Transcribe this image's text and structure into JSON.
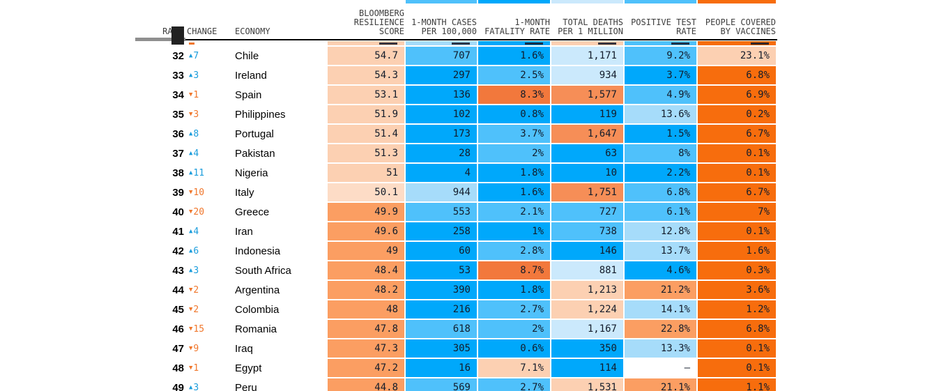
{
  "palette": {
    "b1": "#00a8fb",
    "b2": "#4fc1fb",
    "b3": "#a6dcfa",
    "b4": "#cbe9fc",
    "o1": "#f76d0d",
    "o2": "#f2783c",
    "o3": "#f68e57",
    "o4": "#fb9e62",
    "o5": "#fcd0b2",
    "o6": "#fddcc6",
    "w": "#ffffff"
  },
  "icons": {
    "up_arrow": "▲",
    "down_arrow": "▼"
  },
  "change_colors": {
    "up": "#1b9ddc",
    "down": "#f0772c"
  },
  "header": {
    "rank_label": "RANK",
    "change_label": "CHANGE",
    "economy_label": "ECONOMY",
    "value_columns": [
      {
        "lines": [
          "BLOOMBERG",
          "RESILIENCE",
          "SCORE"
        ]
      },
      {
        "lines": [
          "1-MONTH CASES",
          "PER 100,000"
        ]
      },
      {
        "lines": [
          "1-MONTH",
          "FATALITY RATE"
        ]
      },
      {
        "lines": [
          "TOTAL DEATHS",
          "PER 1 MILLION"
        ]
      },
      {
        "lines": [
          "POSITIVE TEST",
          "RATE"
        ]
      },
      {
        "lines": [
          "PEOPLE COVERED",
          "BY VACCINES"
        ]
      }
    ]
  },
  "top_strip": {
    "colors": [
      "b2",
      "b1",
      "b4",
      "b2",
      "o1"
    ]
  },
  "partial_row": {
    "cell_colors": [
      "o5",
      "b3",
      "b1",
      "o5",
      "b2",
      "o1"
    ],
    "change_dir": "down"
  },
  "chart_data": {
    "type": "table",
    "columns": [
      "RANK",
      "CHANGE",
      "ECONOMY",
      "BLOOMBERG RESILIENCE SCORE",
      "1-MONTH CASES PER 100,000",
      "1-MONTH FATALITY RATE",
      "TOTAL DEATHS PER 1 MILLION",
      "POSITIVE TEST RATE",
      "PEOPLE COVERED BY VACCINES"
    ],
    "rows": [
      {
        "rank": "32",
        "dir": "up",
        "change": "7",
        "economy": "Chile",
        "values": [
          "54.7",
          "707",
          "1.6%",
          "1,171",
          "9.2%",
          "23.1%"
        ],
        "colors": [
          "o5",
          "b2",
          "b1",
          "b4",
          "b2",
          "o5"
        ]
      },
      {
        "rank": "33",
        "dir": "up",
        "change": "3",
        "economy": "Ireland",
        "values": [
          "54.3",
          "297",
          "2.5%",
          "934",
          "3.7%",
          "6.8%"
        ],
        "colors": [
          "o5",
          "b1",
          "b2",
          "b4",
          "b1",
          "o1"
        ]
      },
      {
        "rank": "34",
        "dir": "down",
        "change": "1",
        "economy": "Spain",
        "values": [
          "53.1",
          "136",
          "8.3%",
          "1,577",
          "4.9%",
          "6.9%"
        ],
        "colors": [
          "o5",
          "b1",
          "o2",
          "o3",
          "b2",
          "o1"
        ]
      },
      {
        "rank": "35",
        "dir": "down",
        "change": "3",
        "economy": "Philippines",
        "values": [
          "51.9",
          "102",
          "0.8%",
          "119",
          "13.6%",
          "0.2%"
        ],
        "colors": [
          "o5",
          "b1",
          "b1",
          "b1",
          "b3",
          "o1"
        ]
      },
      {
        "rank": "36",
        "dir": "up",
        "change": "8",
        "economy": "Portugal",
        "values": [
          "51.4",
          "173",
          "3.7%",
          "1,647",
          "1.5%",
          "6.7%"
        ],
        "colors": [
          "o5",
          "b1",
          "b2",
          "o3",
          "b1",
          "o1"
        ]
      },
      {
        "rank": "37",
        "dir": "up",
        "change": "4",
        "economy": "Pakistan",
        "values": [
          "51.3",
          "28",
          "2%",
          "63",
          "8%",
          "0.1%"
        ],
        "colors": [
          "o5",
          "b1",
          "b2",
          "b1",
          "b2",
          "o1"
        ]
      },
      {
        "rank": "38",
        "dir": "up",
        "change": "11",
        "economy": "Nigeria",
        "values": [
          "51",
          "4",
          "1.8%",
          "10",
          "2.2%",
          "0.1%"
        ],
        "colors": [
          "o5",
          "b1",
          "b1",
          "b1",
          "b1",
          "o1"
        ]
      },
      {
        "rank": "39",
        "dir": "down",
        "change": "10",
        "economy": "Italy",
        "values": [
          "50.1",
          "944",
          "1.6%",
          "1,751",
          "6.8%",
          "6.7%"
        ],
        "colors": [
          "o6",
          "b3",
          "b1",
          "o3",
          "b2",
          "o1"
        ]
      },
      {
        "rank": "40",
        "dir": "down",
        "change": "20",
        "economy": "Greece",
        "values": [
          "49.9",
          "553",
          "2.1%",
          "727",
          "6.1%",
          "7%"
        ],
        "colors": [
          "o4",
          "b2",
          "b2",
          "b2",
          "b2",
          "o1"
        ]
      },
      {
        "rank": "41",
        "dir": "up",
        "change": "4",
        "economy": "Iran",
        "values": [
          "49.6",
          "258",
          "1%",
          "738",
          "12.8%",
          "0.1%"
        ],
        "colors": [
          "o4",
          "b1",
          "b1",
          "b2",
          "b3",
          "o1"
        ]
      },
      {
        "rank": "42",
        "dir": "up",
        "change": "6",
        "economy": "Indonesia",
        "values": [
          "49",
          "60",
          "2.8%",
          "146",
          "13.7%",
          "1.6%"
        ],
        "colors": [
          "o4",
          "b1",
          "b2",
          "b1",
          "b3",
          "o1"
        ]
      },
      {
        "rank": "43",
        "dir": "up",
        "change": "3",
        "economy": "South Africa",
        "values": [
          "48.4",
          "53",
          "8.7%",
          "881",
          "4.6%",
          "0.3%"
        ],
        "colors": [
          "o4",
          "b1",
          "o2",
          "b4",
          "b1",
          "o1"
        ]
      },
      {
        "rank": "44",
        "dir": "down",
        "change": "2",
        "economy": "Argentina",
        "values": [
          "48.2",
          "390",
          "1.8%",
          "1,213",
          "21.2%",
          "3.6%"
        ],
        "colors": [
          "o4",
          "b1",
          "b1",
          "o5",
          "o4",
          "o1"
        ]
      },
      {
        "rank": "45",
        "dir": "down",
        "change": "2",
        "economy": "Colombia",
        "values": [
          "48",
          "216",
          "2.7%",
          "1,224",
          "14.1%",
          "1.2%"
        ],
        "colors": [
          "o4",
          "b1",
          "b2",
          "o5",
          "b3",
          "o1"
        ]
      },
      {
        "rank": "46",
        "dir": "down",
        "change": "15",
        "economy": "Romania",
        "values": [
          "47.8",
          "618",
          "2%",
          "1,167",
          "22.8%",
          "6.8%"
        ],
        "colors": [
          "o4",
          "b2",
          "b2",
          "b4",
          "o4",
          "o1"
        ]
      },
      {
        "rank": "47",
        "dir": "down",
        "change": "9",
        "economy": "Iraq",
        "values": [
          "47.3",
          "305",
          "0.6%",
          "350",
          "13.3%",
          "0.1%"
        ],
        "colors": [
          "o4",
          "b1",
          "b1",
          "b1",
          "b3",
          "o1"
        ]
      },
      {
        "rank": "48",
        "dir": "down",
        "change": "1",
        "economy": "Egypt",
        "values": [
          "47.2",
          "16",
          "7.1%",
          "114",
          "–",
          "0.1%"
        ],
        "colors": [
          "o4",
          "b1",
          "o5",
          "b1",
          "w",
          "o1"
        ]
      },
      {
        "rank": "49",
        "dir": "up",
        "change": "3",
        "economy": "Peru",
        "values": [
          "44.8",
          "569",
          "2.7%",
          "1,531",
          "21.1%",
          "1.1%"
        ],
        "colors": [
          "o4",
          "b2",
          "b2",
          "o5",
          "o4",
          "o1"
        ]
      }
    ]
  }
}
